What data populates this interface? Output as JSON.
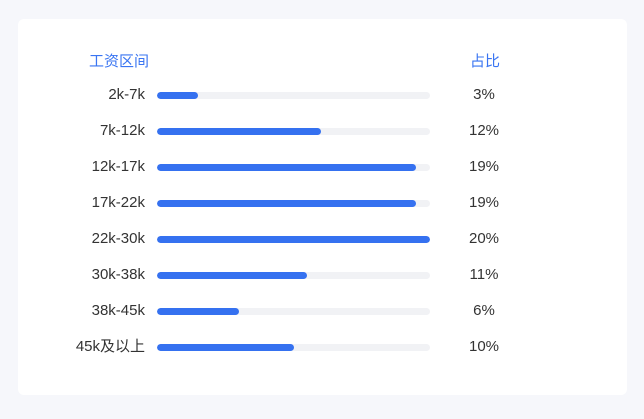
{
  "chart_data": {
    "type": "bar",
    "orientation": "horizontal",
    "column_headers": {
      "category": "工资区间",
      "value": "占比"
    },
    "categories": [
      "2k-7k",
      "7k-12k",
      "12k-17k",
      "17k-22k",
      "22k-30k",
      "30k-38k",
      "38k-45k",
      "45k及以上"
    ],
    "values": [
      3,
      12,
      19,
      19,
      20,
      11,
      6,
      10
    ],
    "value_labels": [
      "3%",
      "12%",
      "19%",
      "19%",
      "20%",
      "11%",
      "6%",
      "10%"
    ],
    "unit": "%",
    "scale_max": 20,
    "grid": false,
    "legend": "none"
  },
  "colors": {
    "header": "#3a75f2",
    "bar_fill": "#3571f0",
    "bar_track": "#f1f2f5",
    "text": "#333333",
    "card": "#ffffff",
    "background": "#f6f7fb"
  }
}
